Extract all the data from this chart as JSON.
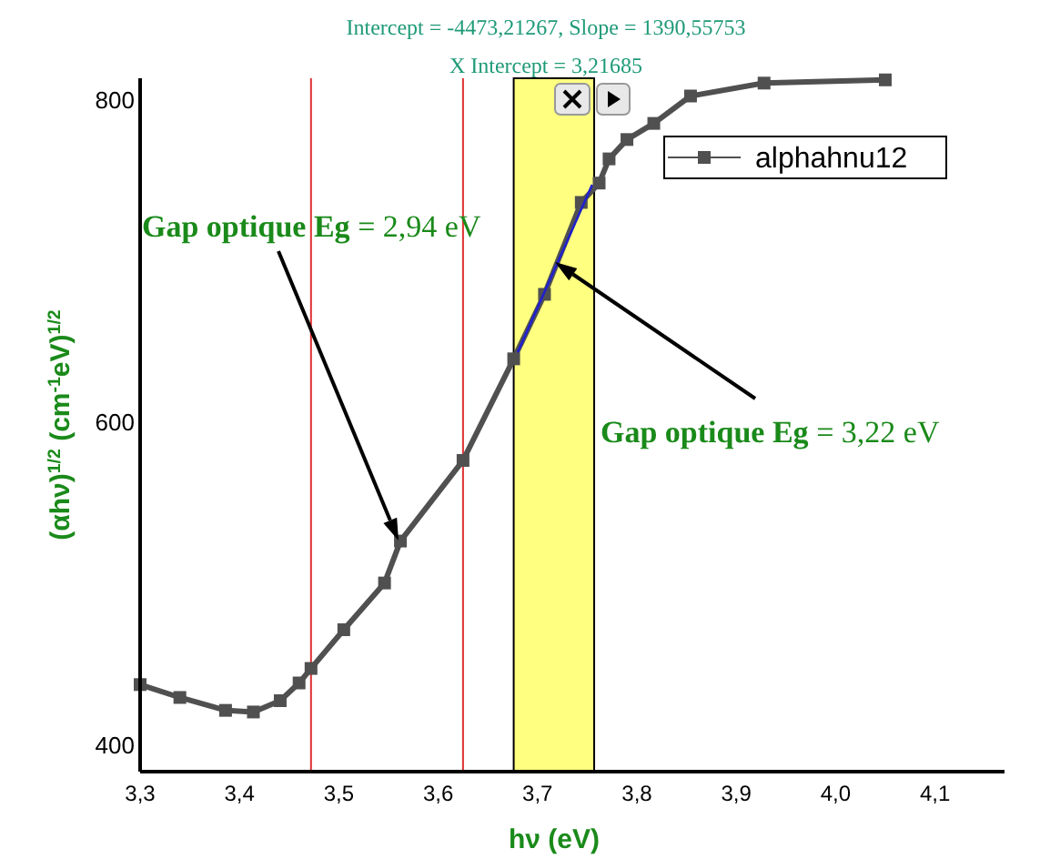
{
  "chart_data": {
    "type": "line",
    "title": "Intercept = -4473,21267, Slope = 1390,55753",
    "subtitle": "X Intercept = 3,21685",
    "xlabel": "hν (eV)",
    "ylabel": "(αhν)$^{1/2}$  (cm$^{-1}$eV)$^{1/2}$",
    "series": [
      {
        "name": "alphahnu12",
        "color": "#505050",
        "marker": "square",
        "x": [
          3.3,
          3.34,
          3.386,
          3.414,
          3.441,
          3.46,
          3.472,
          3.505,
          3.546,
          3.562,
          3.625,
          3.676,
          3.707,
          3.744,
          3.762,
          3.772,
          3.79,
          3.817,
          3.854,
          3.928,
          4.05
        ],
        "values": [
          438,
          430,
          422,
          421,
          428,
          439,
          448,
          472,
          501,
          527,
          577,
          640,
          680,
          737,
          749,
          764,
          776,
          786,
          803,
          811,
          813
        ]
      },
      {
        "type": "line",
        "color": "#2020d0",
        "marker": "none",
        "x": [
          3.68,
          3.755
        ],
        "values": [
          644,
          748
        ]
      }
    ],
    "xlim": [
      3.3,
      4.17
    ],
    "ylim": [
      384,
      814
    ],
    "xticks": [
      {
        "value": 3.3,
        "label": "3,3"
      },
      {
        "value": 3.4,
        "label": "3,4"
      },
      {
        "value": 3.5,
        "label": "3,5"
      },
      {
        "value": 3.6,
        "label": "3,6"
      },
      {
        "value": 3.7,
        "label": "3,7"
      },
      {
        "value": 3.8,
        "label": "3,8"
      },
      {
        "value": 3.9,
        "label": "3,9"
      },
      {
        "value": 4.0,
        "label": "4,0"
      },
      {
        "value": 4.1,
        "label": "4,1"
      }
    ],
    "yticks": [
      400,
      600,
      800
    ],
    "ref_lines": [
      {
        "axis": "x",
        "value": 3.472,
        "color": "#e03030"
      },
      {
        "axis": "x",
        "value": 3.625,
        "color": "#e03030"
      }
    ],
    "bands": [
      {
        "axis": "x",
        "from": 3.676,
        "to": 3.757,
        "color": "#ffff80"
      }
    ],
    "annotations": [
      "Gap optique Eg = 2,94 eV",
      "Gap optique Eg = 3,22 eV"
    ],
    "legend": "top right",
    "grid": false
  }
}
